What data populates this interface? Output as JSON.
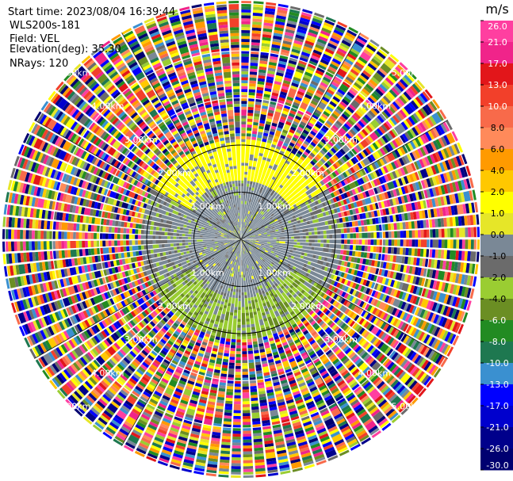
{
  "header": {
    "start_time": "Start time: 2023/08/04 16:39:44",
    "instrument": "WLS200s-181",
    "field": "Field: VEL",
    "elevation": "Elevation(deg): 35.30",
    "nrays": "NRays: 120"
  },
  "colorbar": {
    "unit": "m/s",
    "ticks": [
      "26.0",
      "21.0",
      "17.0",
      "13.0",
      "10.0",
      "8.0",
      "6.0",
      "4.0",
      "2.0",
      "1.0",
      "0.0",
      "-1.0",
      "-2.0",
      "-4.0",
      "-6.0",
      "-8.0",
      "-10.0",
      "-13.0",
      "-17.0",
      "-21.0",
      "-26.0",
      "-30.0"
    ],
    "bins": [
      {
        "color": "#ff3fa0",
        "light_text": true
      },
      {
        "color": "#f0248a",
        "light_text": true
      },
      {
        "color": "#e2161a",
        "light_text": true
      },
      {
        "color": "#f2402a",
        "light_text": true
      },
      {
        "color": "#f86a4a",
        "light_text": true
      },
      {
        "color": "#ff8a5a",
        "light_text": false
      },
      {
        "color": "#ff9a00",
        "light_text": false
      },
      {
        "color": "#ffc800",
        "light_text": false
      },
      {
        "color": "#ffff00",
        "light_text": false
      },
      {
        "color": "#e6e628",
        "light_text": false
      },
      {
        "color": "#7a8896",
        "light_text": false
      },
      {
        "color": "#6b6b6b",
        "light_text": false
      },
      {
        "color": "#9acd32",
        "light_text": false
      },
      {
        "color": "#6b8e23",
        "light_text": false
      },
      {
        "color": "#228b22",
        "light_text": true
      },
      {
        "color": "#1e7850",
        "light_text": true
      },
      {
        "color": "#3a90d0",
        "light_text": true
      },
      {
        "color": "#0000ff",
        "light_text": true
      },
      {
        "color": "#0000cd",
        "light_text": true
      },
      {
        "color": "#00008b",
        "light_text": true
      },
      {
        "color": "#000070",
        "light_text": true
      }
    ]
  },
  "chart_data": {
    "type": "ppi_scan",
    "field": "VEL",
    "elevation_deg": 35.3,
    "n_rays": 120,
    "range_rings_km": [
      1,
      2,
      3,
      4,
      5
    ],
    "range_ring_label_suffix": "km",
    "max_display_range_km": 5.06,
    "valid_signal_range_km": 2.1,
    "core_pattern": {
      "inner_km": 0.0,
      "outer_km": 1.05,
      "dominant": "0.0 (gray)",
      "speckle": "-2.0 (green) and 2.0 (yellow)"
    },
    "annulus_pattern": {
      "inner_km": 1.05,
      "outer_km": 2.1,
      "upper_half": "2.0 (yellow)",
      "lower_half": "-2.0 (green)",
      "sides": "0.0 (gray)"
    },
    "noise_region": {
      "inner_km": 2.1,
      "outer_km": 5.06,
      "values": "random full-scale noise"
    }
  }
}
